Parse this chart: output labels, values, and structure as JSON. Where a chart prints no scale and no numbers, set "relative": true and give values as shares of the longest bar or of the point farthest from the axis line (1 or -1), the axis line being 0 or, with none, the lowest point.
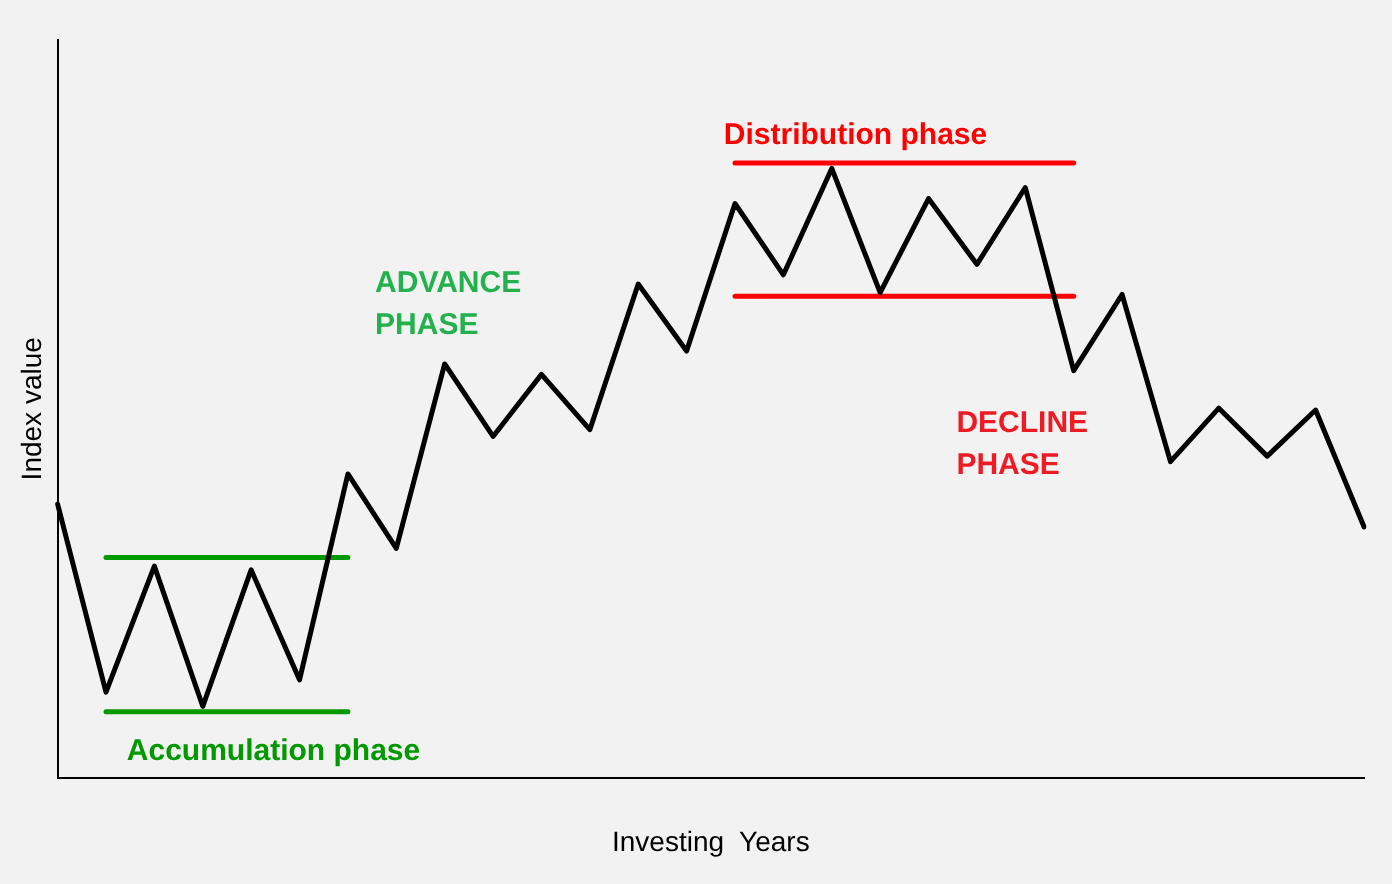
{
  "chart_data": {
    "type": "line",
    "relative": true,
    "xlabel": "Investing  Years",
    "ylabel": "Index value",
    "categories": [
      null,
      null,
      null,
      null,
      null,
      null,
      null,
      null,
      null,
      null,
      null,
      null,
      null,
      null,
      null,
      null,
      null,
      null,
      null,
      null,
      null,
      null,
      null,
      null,
      null,
      null,
      null,
      null
    ],
    "series": [
      {
        "color": "#000000",
        "values": [
          0.445,
          0.139,
          0.344,
          0.116,
          0.338,
          0.159,
          0.494,
          0.373,
          0.673,
          0.555,
          0.656,
          0.566,
          0.803,
          0.694,
          0.934,
          0.818,
          0.991,
          0.789,
          0.942,
          0.835,
          0.96,
          0.662,
          0.786,
          0.514,
          0.601,
          0.523,
          0.598,
          0.408
        ]
      },
      {
        "color": "#009900",
        "values": [
          null,
          0.358,
          null,
          null,
          null,
          null,
          0.358,
          null,
          null,
          null,
          null,
          null,
          null,
          null,
          null,
          null,
          null,
          null,
          null,
          null,
          null,
          null,
          null,
          null,
          null,
          null,
          null,
          null
        ]
      },
      {
        "color": "#009900",
        "values": [
          null,
          0.107,
          null,
          null,
          null,
          null,
          0.107,
          null,
          null,
          null,
          null,
          null,
          null,
          null,
          null,
          null,
          null,
          null,
          null,
          null,
          null,
          null,
          null,
          null,
          null,
          null,
          null,
          null
        ]
      },
      {
        "color": "#ff0000",
        "values": [
          null,
          null,
          null,
          null,
          null,
          null,
          null,
          null,
          null,
          null,
          null,
          null,
          null,
          null,
          0.783,
          null,
          null,
          null,
          null,
          null,
          null,
          0.783,
          null,
          null,
          null,
          null,
          null,
          null
        ]
      },
      {
        "color": "#ff0000",
        "values": [
          null,
          null,
          null,
          null,
          null,
          null,
          null,
          null,
          null,
          null,
          null,
          null,
          null,
          null,
          1,
          null,
          null,
          null,
          null,
          null,
          null,
          1,
          null,
          null,
          null,
          null,
          null,
          null
        ]
      }
    ],
    "annotations": [
      "Accumulation phase",
      "ADVANCE\nPHASE",
      "Distribution phase",
      "DECLINE\nPHASE"
    ],
    "grid": false,
    "legend": false,
    "marker": "none",
    "line_style": "solid"
  }
}
